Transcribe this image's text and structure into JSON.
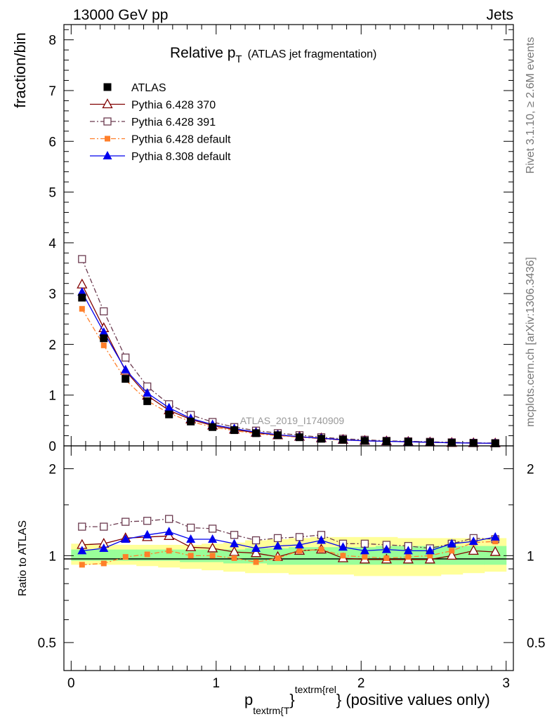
{
  "header": {
    "left": "13000 GeV pp",
    "right": "Jets"
  },
  "title": {
    "main": "Relative p",
    "sub": "T",
    "suffix": "(ATLAS jet fragmentation)"
  },
  "side_labels": {
    "rivet": "Rivet 3.1.10, ≥ 2.6M events",
    "mcplots": "mcplots.cern.ch [arXiv:1306.3436]"
  },
  "watermark": "ATLAS_2019_I1740909",
  "colors": {
    "atlas": "#000000",
    "p370": "#800000",
    "p391": "#6b3a4f",
    "p6def": "#ff7f2a",
    "p8def": "#0000ee",
    "band_yellow": "#ffff99",
    "band_green": "#99ff99"
  },
  "chart_data": [
    {
      "type": "line",
      "panel": "main",
      "ylabel": "fraction/bin",
      "ylim": [
        0,
        8.3
      ],
      "xlim": [
        -0.05,
        3.05
      ],
      "yticks": [
        0,
        1,
        2,
        3,
        4,
        5,
        6,
        7,
        8
      ],
      "legend_position": "top-left",
      "x": [
        0.075,
        0.225,
        0.375,
        0.525,
        0.675,
        0.825,
        0.975,
        1.125,
        1.275,
        1.425,
        1.575,
        1.725,
        1.875,
        2.025,
        2.175,
        2.325,
        2.475,
        2.625,
        2.775,
        2.925
      ],
      "series": [
        {
          "name": "ATLAS",
          "key": "atlas",
          "marker": "square-filled",
          "line": "none",
          "values": [
            2.92,
            2.12,
            1.32,
            0.88,
            0.62,
            0.48,
            0.37,
            0.31,
            0.25,
            0.21,
            0.17,
            0.14,
            0.12,
            0.1,
            0.09,
            0.08,
            0.07,
            0.06,
            0.055,
            0.05
          ]
        },
        {
          "name": "Pythia 6.428 370",
          "key": "p370",
          "marker": "triangle-open",
          "line": "solid",
          "values": [
            3.18,
            2.32,
            1.48,
            0.99,
            0.7,
            0.52,
            0.4,
            0.32,
            0.26,
            0.21,
            0.18,
            0.15,
            0.12,
            0.1,
            0.09,
            0.08,
            0.07,
            0.06,
            0.055,
            0.05
          ]
        },
        {
          "name": "Pythia 6.428 391",
          "key": "p391",
          "marker": "square-open",
          "line": "dashdot",
          "values": [
            3.68,
            2.65,
            1.74,
            1.17,
            0.82,
            0.61,
            0.47,
            0.37,
            0.3,
            0.25,
            0.21,
            0.17,
            0.14,
            0.12,
            0.1,
            0.09,
            0.08,
            0.07,
            0.06,
            0.055
          ]
        },
        {
          "name": "Pythia 6.428 default",
          "key": "p6def",
          "marker": "square-filled-small",
          "line": "dashdot",
          "values": [
            2.7,
            1.98,
            1.3,
            0.89,
            0.64,
            0.48,
            0.37,
            0.3,
            0.24,
            0.2,
            0.17,
            0.14,
            0.11,
            0.1,
            0.09,
            0.08,
            0.07,
            0.06,
            0.055,
            0.05
          ]
        },
        {
          "name": "Pythia 8.308 default",
          "key": "p8def",
          "marker": "triangle-filled",
          "line": "solid",
          "values": [
            3.03,
            2.24,
            1.5,
            1.04,
            0.75,
            0.54,
            0.42,
            0.34,
            0.27,
            0.22,
            0.18,
            0.15,
            0.12,
            0.1,
            0.09,
            0.08,
            0.07,
            0.06,
            0.055,
            0.05
          ]
        }
      ]
    },
    {
      "type": "line",
      "panel": "ratio",
      "ylabel": "Ratio to ATLAS",
      "xlabel_main": "p",
      "xlabel_sub": "textrm{T",
      "xlabel_sup": "textrm{rel",
      "xlabel_brace": "}",
      "xlabel_suffix": "} (positive values only)",
      "ylim": [
        0.4,
        2.4
      ],
      "log_y": true,
      "ytick_labels": [
        "0.5",
        "1",
        "2"
      ],
      "xtick_labels": [
        "0",
        "1",
        "2",
        "3"
      ],
      "band_edges": [
        0.0,
        0.15,
        0.3,
        0.45,
        0.6,
        0.75,
        0.9,
        1.05,
        1.2,
        1.35,
        1.5,
        1.65,
        1.8,
        1.95,
        2.1,
        2.25,
        2.4,
        2.55,
        2.7,
        2.85,
        3.0
      ],
      "band_yellow": [
        [
          0.93,
          1.1
        ],
        [
          0.93,
          1.09
        ],
        [
          0.93,
          1.09
        ],
        [
          0.92,
          1.09
        ],
        [
          0.91,
          1.09
        ],
        [
          0.9,
          1.09
        ],
        [
          0.89,
          1.1
        ],
        [
          0.88,
          1.11
        ],
        [
          0.87,
          1.13
        ],
        [
          0.87,
          1.14
        ],
        [
          0.86,
          1.15
        ],
        [
          0.86,
          1.16
        ],
        [
          0.86,
          1.16
        ],
        [
          0.85,
          1.16
        ],
        [
          0.85,
          1.16
        ],
        [
          0.85,
          1.15
        ],
        [
          0.85,
          1.15
        ],
        [
          0.86,
          1.15
        ],
        [
          0.87,
          1.15
        ],
        [
          0.88,
          1.15
        ]
      ],
      "band_green": [
        [
          0.96,
          1.05
        ],
        [
          0.96,
          1.05
        ],
        [
          0.96,
          1.05
        ],
        [
          0.96,
          1.05
        ],
        [
          0.96,
          1.05
        ],
        [
          0.95,
          1.05
        ],
        [
          0.95,
          1.05
        ],
        [
          0.94,
          1.05
        ],
        [
          0.94,
          1.06
        ],
        [
          0.93,
          1.06
        ],
        [
          0.93,
          1.07
        ],
        [
          0.93,
          1.07
        ],
        [
          0.93,
          1.07
        ],
        [
          0.93,
          1.07
        ],
        [
          0.93,
          1.08
        ],
        [
          0.93,
          1.08
        ],
        [
          0.93,
          1.08
        ],
        [
          0.93,
          1.08
        ],
        [
          0.93,
          1.08
        ],
        [
          0.93,
          1.08
        ]
      ],
      "series": [
        {
          "name": "Pythia 6.428 370",
          "key": "p370",
          "marker": "triangle-open",
          "line": "solid",
          "values": [
            1.09,
            1.1,
            1.15,
            1.16,
            1.17,
            1.07,
            1.06,
            1.03,
            1.02,
            0.99,
            1.04,
            1.05,
            0.98,
            0.97,
            0.97,
            0.97,
            0.97,
            1.0,
            1.04,
            1.03
          ]
        },
        {
          "name": "Pythia 6.428 391",
          "key": "p391",
          "marker": "square-open",
          "line": "dashdot",
          "values": [
            1.26,
            1.26,
            1.31,
            1.32,
            1.34,
            1.25,
            1.24,
            1.18,
            1.13,
            1.15,
            1.16,
            1.18,
            1.1,
            1.1,
            1.09,
            1.08,
            1.06,
            1.1,
            1.15,
            1.14
          ]
        },
        {
          "name": "Pythia 6.428 default",
          "key": "p6def",
          "marker": "square-filled-small",
          "line": "dashdot",
          "values": [
            0.93,
            0.94,
            0.99,
            1.01,
            1.04,
            1.0,
            1.0,
            0.98,
            0.95,
            0.98,
            1.04,
            1.05,
            1.0,
            0.99,
            0.98,
            0.99,
            1.0,
            1.04,
            1.11,
            1.12
          ]
        },
        {
          "name": "Pythia 8.308 default",
          "key": "p8def",
          "marker": "triangle-filled",
          "line": "solid",
          "values": [
            1.04,
            1.06,
            1.14,
            1.18,
            1.21,
            1.14,
            1.14,
            1.1,
            1.06,
            1.08,
            1.09,
            1.13,
            1.07,
            1.04,
            1.05,
            1.04,
            1.04,
            1.1,
            1.12,
            1.16
          ]
        }
      ]
    }
  ]
}
